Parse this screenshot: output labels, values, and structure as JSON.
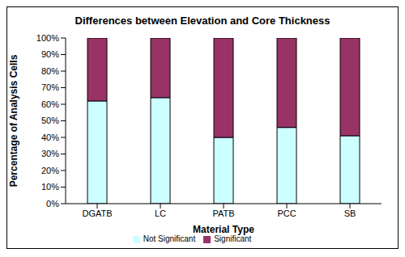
{
  "chart_data": {
    "type": "bar",
    "title": "Differences between Elevation and Core Thickness",
    "x_label": "Material Type",
    "y_label": "Percentage of Analysis Cells",
    "categories": [
      "DGATB",
      "LC",
      "PATB",
      "PCC",
      "SB"
    ],
    "series": [
      {
        "name": "Not Significant",
        "color": "#ccffff",
        "values": [
          62,
          64,
          40,
          46,
          41
        ]
      },
      {
        "name": "Significant",
        "color": "#993366",
        "values": [
          38,
          36,
          60,
          54,
          59
        ]
      }
    ],
    "stacked": true,
    "ylim": [
      0,
      100
    ],
    "yticks": [
      {
        "value": 0,
        "label": "0%"
      },
      {
        "value": 10,
        "label": "10%"
      },
      {
        "value": 20,
        "label": "20%"
      },
      {
        "value": 30,
        "label": "30%"
      },
      {
        "value": 40,
        "label": "40%"
      },
      {
        "value": 50,
        "label": "50%"
      },
      {
        "value": 60,
        "label": "60%"
      },
      {
        "value": 70,
        "label": "70%"
      },
      {
        "value": 80,
        "label": "80%"
      },
      {
        "value": 90,
        "label": "90%"
      },
      {
        "value": 100,
        "label": "100%"
      }
    ],
    "grid": false,
    "legend": "bottom"
  }
}
